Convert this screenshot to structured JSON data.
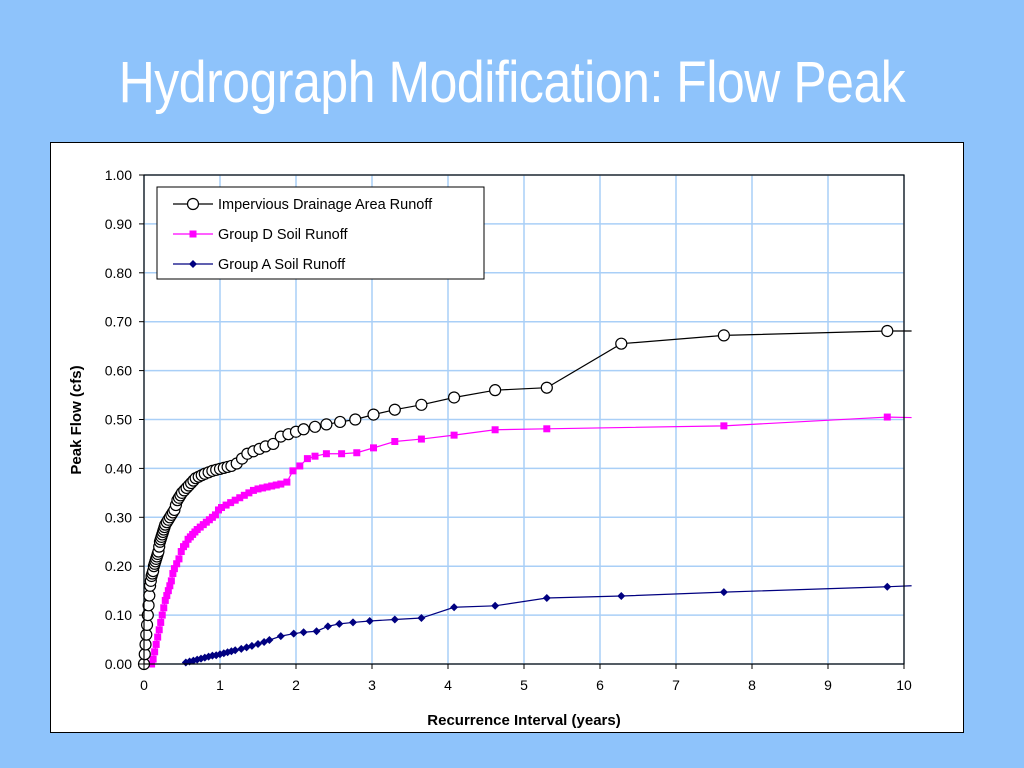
{
  "slide": {
    "title": "Hydrograph Modification: Flow Peak"
  },
  "colors": {
    "background": "#8ec3fb",
    "grid": "#a9cff7",
    "impervious": "#000000",
    "group_d": "#ff00ff",
    "group_a": "#000080"
  },
  "chart_data": {
    "type": "line",
    "xlabel": "Recurrence Interval (years)",
    "ylabel": "Peak Flow (cfs)",
    "xlim": [
      0,
      10
    ],
    "ylim": [
      0,
      1.0
    ],
    "xticks": [
      "0",
      "1",
      "2",
      "3",
      "4",
      "5",
      "6",
      "7",
      "8",
      "9",
      "10"
    ],
    "yticks": [
      "0.00",
      "0.10",
      "0.20",
      "0.30",
      "0.40",
      "0.50",
      "0.60",
      "0.70",
      "0.80",
      "0.90",
      "1.00"
    ],
    "grid": true,
    "legend_position": "top-left",
    "series": [
      {
        "name": "Impervious Drainage Area Runoff",
        "color": "#000000",
        "marker": "open-circle",
        "x": [
          0.0,
          0.01,
          0.02,
          0.03,
          0.04,
          0.05,
          0.06,
          0.07,
          0.08,
          0.09,
          0.1,
          0.11,
          0.12,
          0.13,
          0.14,
          0.15,
          0.16,
          0.17,
          0.18,
          0.19,
          0.2,
          0.21,
          0.22,
          0.23,
          0.24,
          0.25,
          0.26,
          0.27,
          0.28,
          0.3,
          0.32,
          0.34,
          0.36,
          0.38,
          0.4,
          0.42,
          0.44,
          0.46,
          0.48,
          0.5,
          0.53,
          0.56,
          0.59,
          0.62,
          0.65,
          0.68,
          0.72,
          0.76,
          0.8,
          0.85,
          0.9,
          0.95,
          1.0,
          1.05,
          1.1,
          1.15,
          1.22,
          1.29,
          1.36,
          1.44,
          1.52,
          1.6,
          1.7,
          1.8,
          1.9,
          2.0,
          2.1,
          2.25,
          2.4,
          2.58,
          2.78,
          3.02,
          3.3,
          3.65,
          4.08,
          4.62,
          5.3,
          6.28,
          7.63,
          9.78,
          10.1
        ],
        "y": [
          0.0,
          0.02,
          0.04,
          0.06,
          0.08,
          0.1,
          0.12,
          0.14,
          0.16,
          0.17,
          0.18,
          0.185,
          0.19,
          0.2,
          0.205,
          0.21,
          0.215,
          0.22,
          0.225,
          0.23,
          0.24,
          0.25,
          0.255,
          0.26,
          0.265,
          0.27,
          0.275,
          0.28,
          0.285,
          0.29,
          0.295,
          0.3,
          0.305,
          0.31,
          0.315,
          0.325,
          0.335,
          0.34,
          0.345,
          0.35,
          0.355,
          0.36,
          0.365,
          0.37,
          0.375,
          0.38,
          0.383,
          0.386,
          0.389,
          0.392,
          0.395,
          0.397,
          0.399,
          0.401,
          0.403,
          0.405,
          0.41,
          0.42,
          0.43,
          0.435,
          0.44,
          0.445,
          0.45,
          0.465,
          0.47,
          0.475,
          0.48,
          0.485,
          0.49,
          0.495,
          0.5,
          0.51,
          0.52,
          0.53,
          0.545,
          0.56,
          0.565,
          0.655,
          0.672,
          0.681,
          0.681
        ]
      },
      {
        "name": "Group D Soil Runoff",
        "color": "#ff00ff",
        "marker": "filled-square",
        "x": [
          0.1,
          0.12,
          0.14,
          0.16,
          0.18,
          0.2,
          0.22,
          0.24,
          0.26,
          0.28,
          0.3,
          0.32,
          0.34,
          0.36,
          0.38,
          0.4,
          0.43,
          0.46,
          0.49,
          0.52,
          0.55,
          0.58,
          0.61,
          0.64,
          0.67,
          0.7,
          0.74,
          0.78,
          0.82,
          0.86,
          0.9,
          0.94,
          0.98,
          1.02,
          1.08,
          1.14,
          1.2,
          1.26,
          1.32,
          1.38,
          1.44,
          1.5,
          1.56,
          1.62,
          1.68,
          1.74,
          1.8,
          1.88,
          1.96,
          2.05,
          2.15,
          2.25,
          2.4,
          2.6,
          2.8,
          3.02,
          3.3,
          3.65,
          4.08,
          4.62,
          5.3,
          7.63,
          9.78,
          10.1
        ],
        "y": [
          0.0,
          0.01,
          0.025,
          0.04,
          0.055,
          0.07,
          0.085,
          0.1,
          0.115,
          0.13,
          0.14,
          0.15,
          0.16,
          0.17,
          0.185,
          0.195,
          0.205,
          0.215,
          0.23,
          0.24,
          0.245,
          0.255,
          0.26,
          0.265,
          0.27,
          0.275,
          0.28,
          0.285,
          0.29,
          0.295,
          0.3,
          0.305,
          0.315,
          0.32,
          0.325,
          0.33,
          0.335,
          0.34,
          0.345,
          0.35,
          0.355,
          0.358,
          0.36,
          0.362,
          0.364,
          0.366,
          0.368,
          0.372,
          0.395,
          0.405,
          0.42,
          0.425,
          0.43,
          0.43,
          0.432,
          0.442,
          0.455,
          0.46,
          0.468,
          0.479,
          0.481,
          0.487,
          0.505,
          0.504
        ]
      },
      {
        "name": "Group A Soil Runoff",
        "color": "#000080",
        "marker": "filled-diamond",
        "x": [
          0.55,
          0.6,
          0.65,
          0.7,
          0.75,
          0.8,
          0.85,
          0.9,
          0.95,
          1.0,
          1.05,
          1.1,
          1.15,
          1.2,
          1.28,
          1.35,
          1.42,
          1.5,
          1.58,
          1.65,
          1.8,
          1.97,
          2.1,
          2.27,
          2.42,
          2.57,
          2.75,
          2.97,
          3.3,
          3.65,
          4.08,
          4.62,
          5.3,
          6.28,
          7.63,
          9.78,
          10.1
        ],
        "y": [
          0.003,
          0.005,
          0.007,
          0.009,
          0.011,
          0.013,
          0.015,
          0.017,
          0.018,
          0.02,
          0.022,
          0.024,
          0.026,
          0.028,
          0.031,
          0.034,
          0.037,
          0.041,
          0.045,
          0.049,
          0.057,
          0.062,
          0.065,
          0.067,
          0.077,
          0.082,
          0.085,
          0.088,
          0.091,
          0.094,
          0.116,
          0.119,
          0.135,
          0.139,
          0.147,
          0.158,
          0.16
        ]
      }
    ]
  }
}
